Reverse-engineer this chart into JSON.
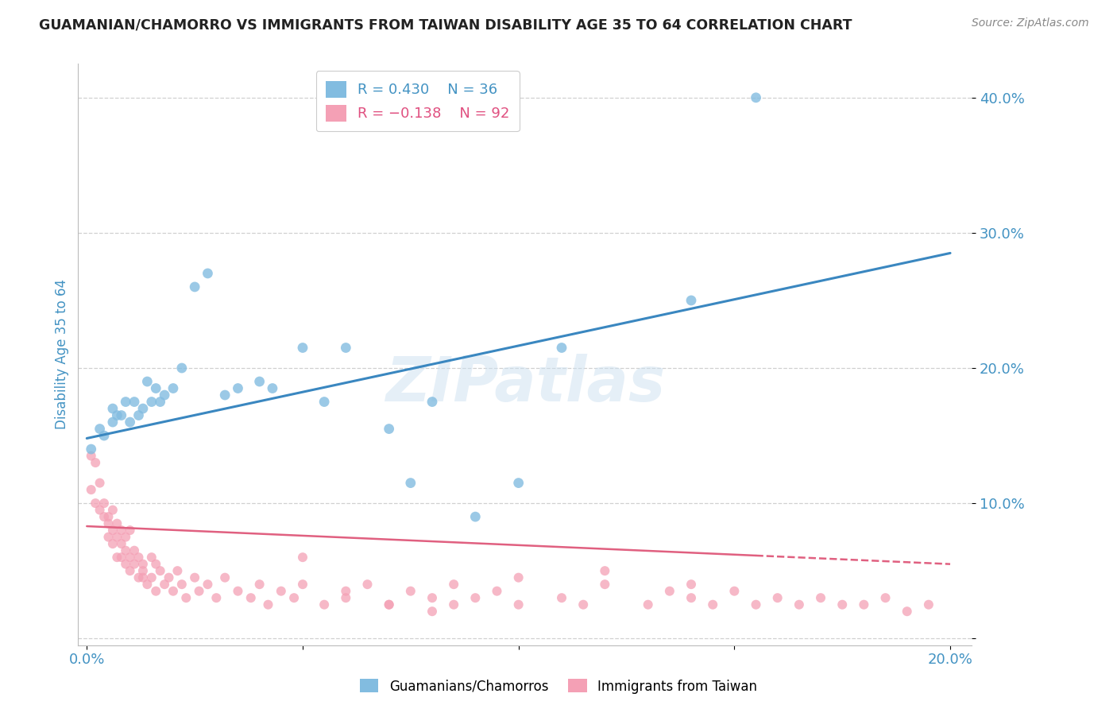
{
  "title": "GUAMANIAN/CHAMORRO VS IMMIGRANTS FROM TAIWAN DISABILITY AGE 35 TO 64 CORRELATION CHART",
  "source": "Source: ZipAtlas.com",
  "ylabel_label": "Disability Age 35 to 64",
  "x_min": -0.002,
  "x_max": 0.205,
  "y_min": -0.005,
  "y_max": 0.425,
  "x_ticks": [
    0.0,
    0.05,
    0.1,
    0.15,
    0.2
  ],
  "x_tick_labels": [
    "0.0%",
    "",
    "",
    "",
    "20.0%"
  ],
  "y_ticks": [
    0.0,
    0.1,
    0.2,
    0.3,
    0.4
  ],
  "y_tick_labels": [
    "",
    "10.0%",
    "20.0%",
    "30.0%",
    "40.0%"
  ],
  "blue_color": "#82bce0",
  "pink_color": "#f4a0b5",
  "line_blue": "#3a87c0",
  "line_pink": "#e06080",
  "legend_R1": "R = 0.430",
  "legend_N1": "N = 36",
  "legend_R2": "R = -0.138",
  "legend_N2": "N = 92",
  "watermark": "ZIPatlas",
  "blue_points_x": [
    0.001,
    0.003,
    0.004,
    0.006,
    0.006,
    0.007,
    0.008,
    0.009,
    0.01,
    0.011,
    0.012,
    0.013,
    0.014,
    0.015,
    0.016,
    0.017,
    0.018,
    0.02,
    0.022,
    0.025,
    0.028,
    0.032,
    0.035,
    0.04,
    0.043,
    0.05,
    0.055,
    0.06,
    0.07,
    0.075,
    0.08,
    0.09,
    0.1,
    0.11,
    0.14,
    0.155
  ],
  "blue_points_y": [
    0.14,
    0.155,
    0.15,
    0.16,
    0.17,
    0.165,
    0.165,
    0.175,
    0.16,
    0.175,
    0.165,
    0.17,
    0.19,
    0.175,
    0.185,
    0.175,
    0.18,
    0.185,
    0.2,
    0.26,
    0.27,
    0.18,
    0.185,
    0.19,
    0.185,
    0.215,
    0.175,
    0.215,
    0.155,
    0.115,
    0.175,
    0.09,
    0.115,
    0.215,
    0.25,
    0.4
  ],
  "pink_points_x": [
    0.001,
    0.001,
    0.002,
    0.002,
    0.003,
    0.003,
    0.004,
    0.004,
    0.005,
    0.005,
    0.005,
    0.006,
    0.006,
    0.006,
    0.007,
    0.007,
    0.007,
    0.008,
    0.008,
    0.008,
    0.009,
    0.009,
    0.009,
    0.01,
    0.01,
    0.01,
    0.011,
    0.011,
    0.012,
    0.012,
    0.013,
    0.013,
    0.013,
    0.014,
    0.015,
    0.015,
    0.016,
    0.016,
    0.017,
    0.018,
    0.019,
    0.02,
    0.021,
    0.022,
    0.023,
    0.025,
    0.026,
    0.028,
    0.03,
    0.032,
    0.035,
    0.038,
    0.04,
    0.042,
    0.045,
    0.048,
    0.05,
    0.055,
    0.06,
    0.065,
    0.07,
    0.075,
    0.08,
    0.085,
    0.09,
    0.095,
    0.1,
    0.11,
    0.115,
    0.12,
    0.13,
    0.135,
    0.14,
    0.145,
    0.15,
    0.155,
    0.16,
    0.165,
    0.17,
    0.175,
    0.18,
    0.185,
    0.19,
    0.195,
    0.05,
    0.1,
    0.12,
    0.14,
    0.06,
    0.07,
    0.08,
    0.085
  ],
  "pink_points_y": [
    0.135,
    0.11,
    0.1,
    0.13,
    0.095,
    0.115,
    0.09,
    0.1,
    0.075,
    0.09,
    0.085,
    0.08,
    0.095,
    0.07,
    0.075,
    0.06,
    0.085,
    0.07,
    0.08,
    0.06,
    0.065,
    0.075,
    0.055,
    0.08,
    0.06,
    0.05,
    0.065,
    0.055,
    0.06,
    0.045,
    0.055,
    0.05,
    0.045,
    0.04,
    0.06,
    0.045,
    0.055,
    0.035,
    0.05,
    0.04,
    0.045,
    0.035,
    0.05,
    0.04,
    0.03,
    0.045,
    0.035,
    0.04,
    0.03,
    0.045,
    0.035,
    0.03,
    0.04,
    0.025,
    0.035,
    0.03,
    0.04,
    0.025,
    0.03,
    0.04,
    0.025,
    0.035,
    0.03,
    0.025,
    0.03,
    0.035,
    0.025,
    0.03,
    0.025,
    0.04,
    0.025,
    0.035,
    0.03,
    0.025,
    0.035,
    0.025,
    0.03,
    0.025,
    0.03,
    0.025,
    0.025,
    0.03,
    0.02,
    0.025,
    0.06,
    0.045,
    0.05,
    0.04,
    0.035,
    0.025,
    0.02,
    0.04
  ],
  "blue_line_x0": 0.0,
  "blue_line_x1": 0.2,
  "blue_line_y0": 0.148,
  "blue_line_y1": 0.285,
  "pink_line_x0": 0.0,
  "pink_line_x1": 0.2,
  "pink_line_y0": 0.083,
  "pink_line_y1": 0.055,
  "grid_color": "#d0d0d0",
  "bg_color": "#ffffff",
  "text_color_blue": "#4393c3",
  "text_color_pink": "#e05080",
  "text_color_dark": "#444444"
}
